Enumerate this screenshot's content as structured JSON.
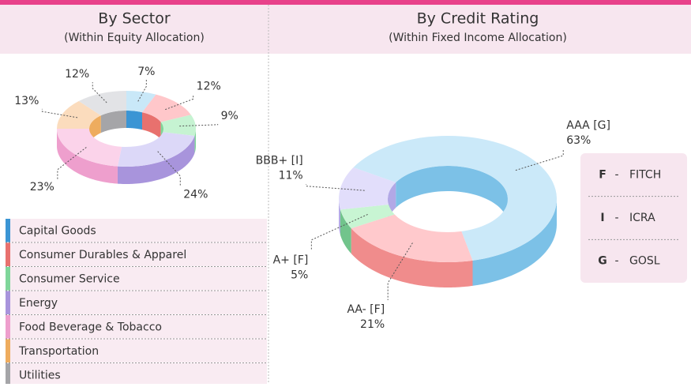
{
  "chart_data": [
    {
      "type": "pie",
      "title": "By Sector",
      "subtitle": "(Within Equity Allocation)",
      "categories": [
        "Capital Goods",
        "Consumer Durables & Apparel",
        "Consumer Service",
        "Energy",
        "Food Beverage & Tobacco",
        "Transportation",
        "Utilities"
      ],
      "values": [
        7,
        12,
        9,
        24,
        23,
        13,
        12
      ],
      "value_labels": [
        "7%",
        "12%",
        "9%",
        "24%",
        "23%",
        "13%",
        "12%"
      ],
      "colors": [
        "#c9e8f8",
        "#ffc7ca",
        "#c6f3d2",
        "#dcd8f8",
        "#fbd3ea",
        "#fbdcbd",
        "#e2e3e6"
      ],
      "side_colors": [
        "#3b95d4",
        "#e8716e",
        "#7fd69a",
        "#a894dc",
        "#ee9fcd",
        "#eeac5e",
        "#a5a5a8"
      ],
      "legend": true
    },
    {
      "type": "pie",
      "title": "By Credit Rating",
      "subtitle": "(Within Fixed Income Allocation)",
      "categories": [
        "AAA [G]",
        "AA- [F]",
        "A+ [F]",
        "BBB+ [I]"
      ],
      "values": [
        63,
        21,
        5,
        11
      ],
      "value_labels": [
        "63%",
        "21%",
        "5%",
        "11%"
      ],
      "colors": [
        "#cbe9f9",
        "#ffc9cc",
        "#c8f5d3",
        "#e2defb"
      ],
      "side_colors": [
        "#7cc1e7",
        "#f08c8c",
        "#72c48c",
        "#b2a8e6"
      ],
      "rating_key_separator": "-",
      "rating_key": [
        {
          "code": "F",
          "name": "FITCH"
        },
        {
          "code": "I",
          "name": "ICRA"
        },
        {
          "code": "G",
          "name": "GOSL"
        }
      ]
    }
  ]
}
